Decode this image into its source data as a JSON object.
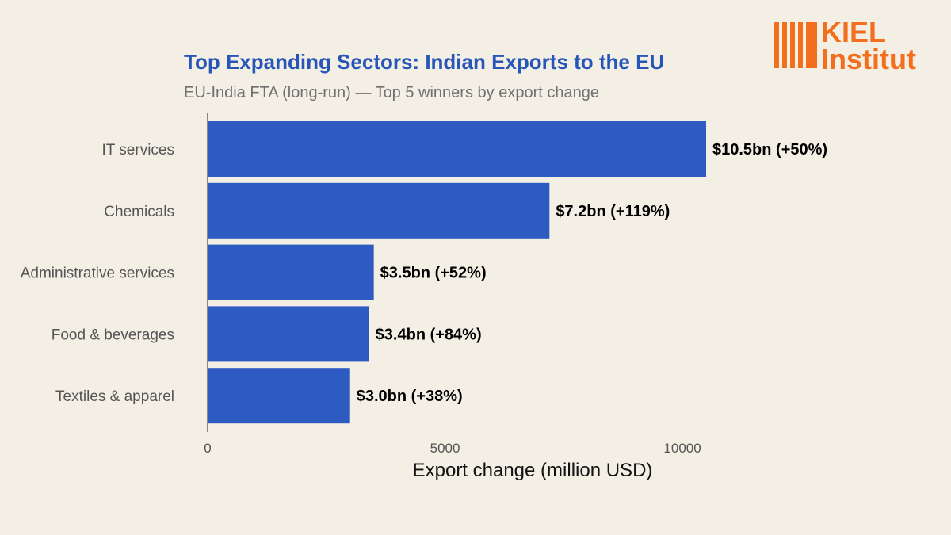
{
  "colors": {
    "background": "#f4efe5",
    "bar": "#2e5bc2",
    "title": "#2855b8",
    "axis": "#666666",
    "logo": "#f26f1e"
  },
  "logo": {
    "line1": "KIEL",
    "line2": "Institut",
    "icon": "kiel-bars-logo-icon"
  },
  "chart_data": {
    "type": "bar",
    "orientation": "horizontal",
    "title": "Top Expanding Sectors: Indian Exports to the EU",
    "subtitle": "EU-India FTA (long-run) — Top 5 winners by export change",
    "xlabel": "Export change (million USD)",
    "ylabel": "",
    "categories": [
      "IT services",
      "Chemicals",
      "Administrative services",
      "Food & beverages",
      "Textiles & apparel"
    ],
    "values": [
      10500,
      7200,
      3500,
      3400,
      3000
    ],
    "data_labels": [
      "$10.5bn (+50%)",
      "$7.2bn (+119%)",
      "$3.5bn (+52%)",
      "$3.4bn (+84%)",
      "$3.0bn (+38%)"
    ],
    "xlim": [
      0,
      10500
    ],
    "xticks": [
      0,
      5000,
      10000
    ],
    "xtick_labels": [
      "0",
      "5000",
      "10000"
    ],
    "grid": false,
    "legend": "none"
  }
}
